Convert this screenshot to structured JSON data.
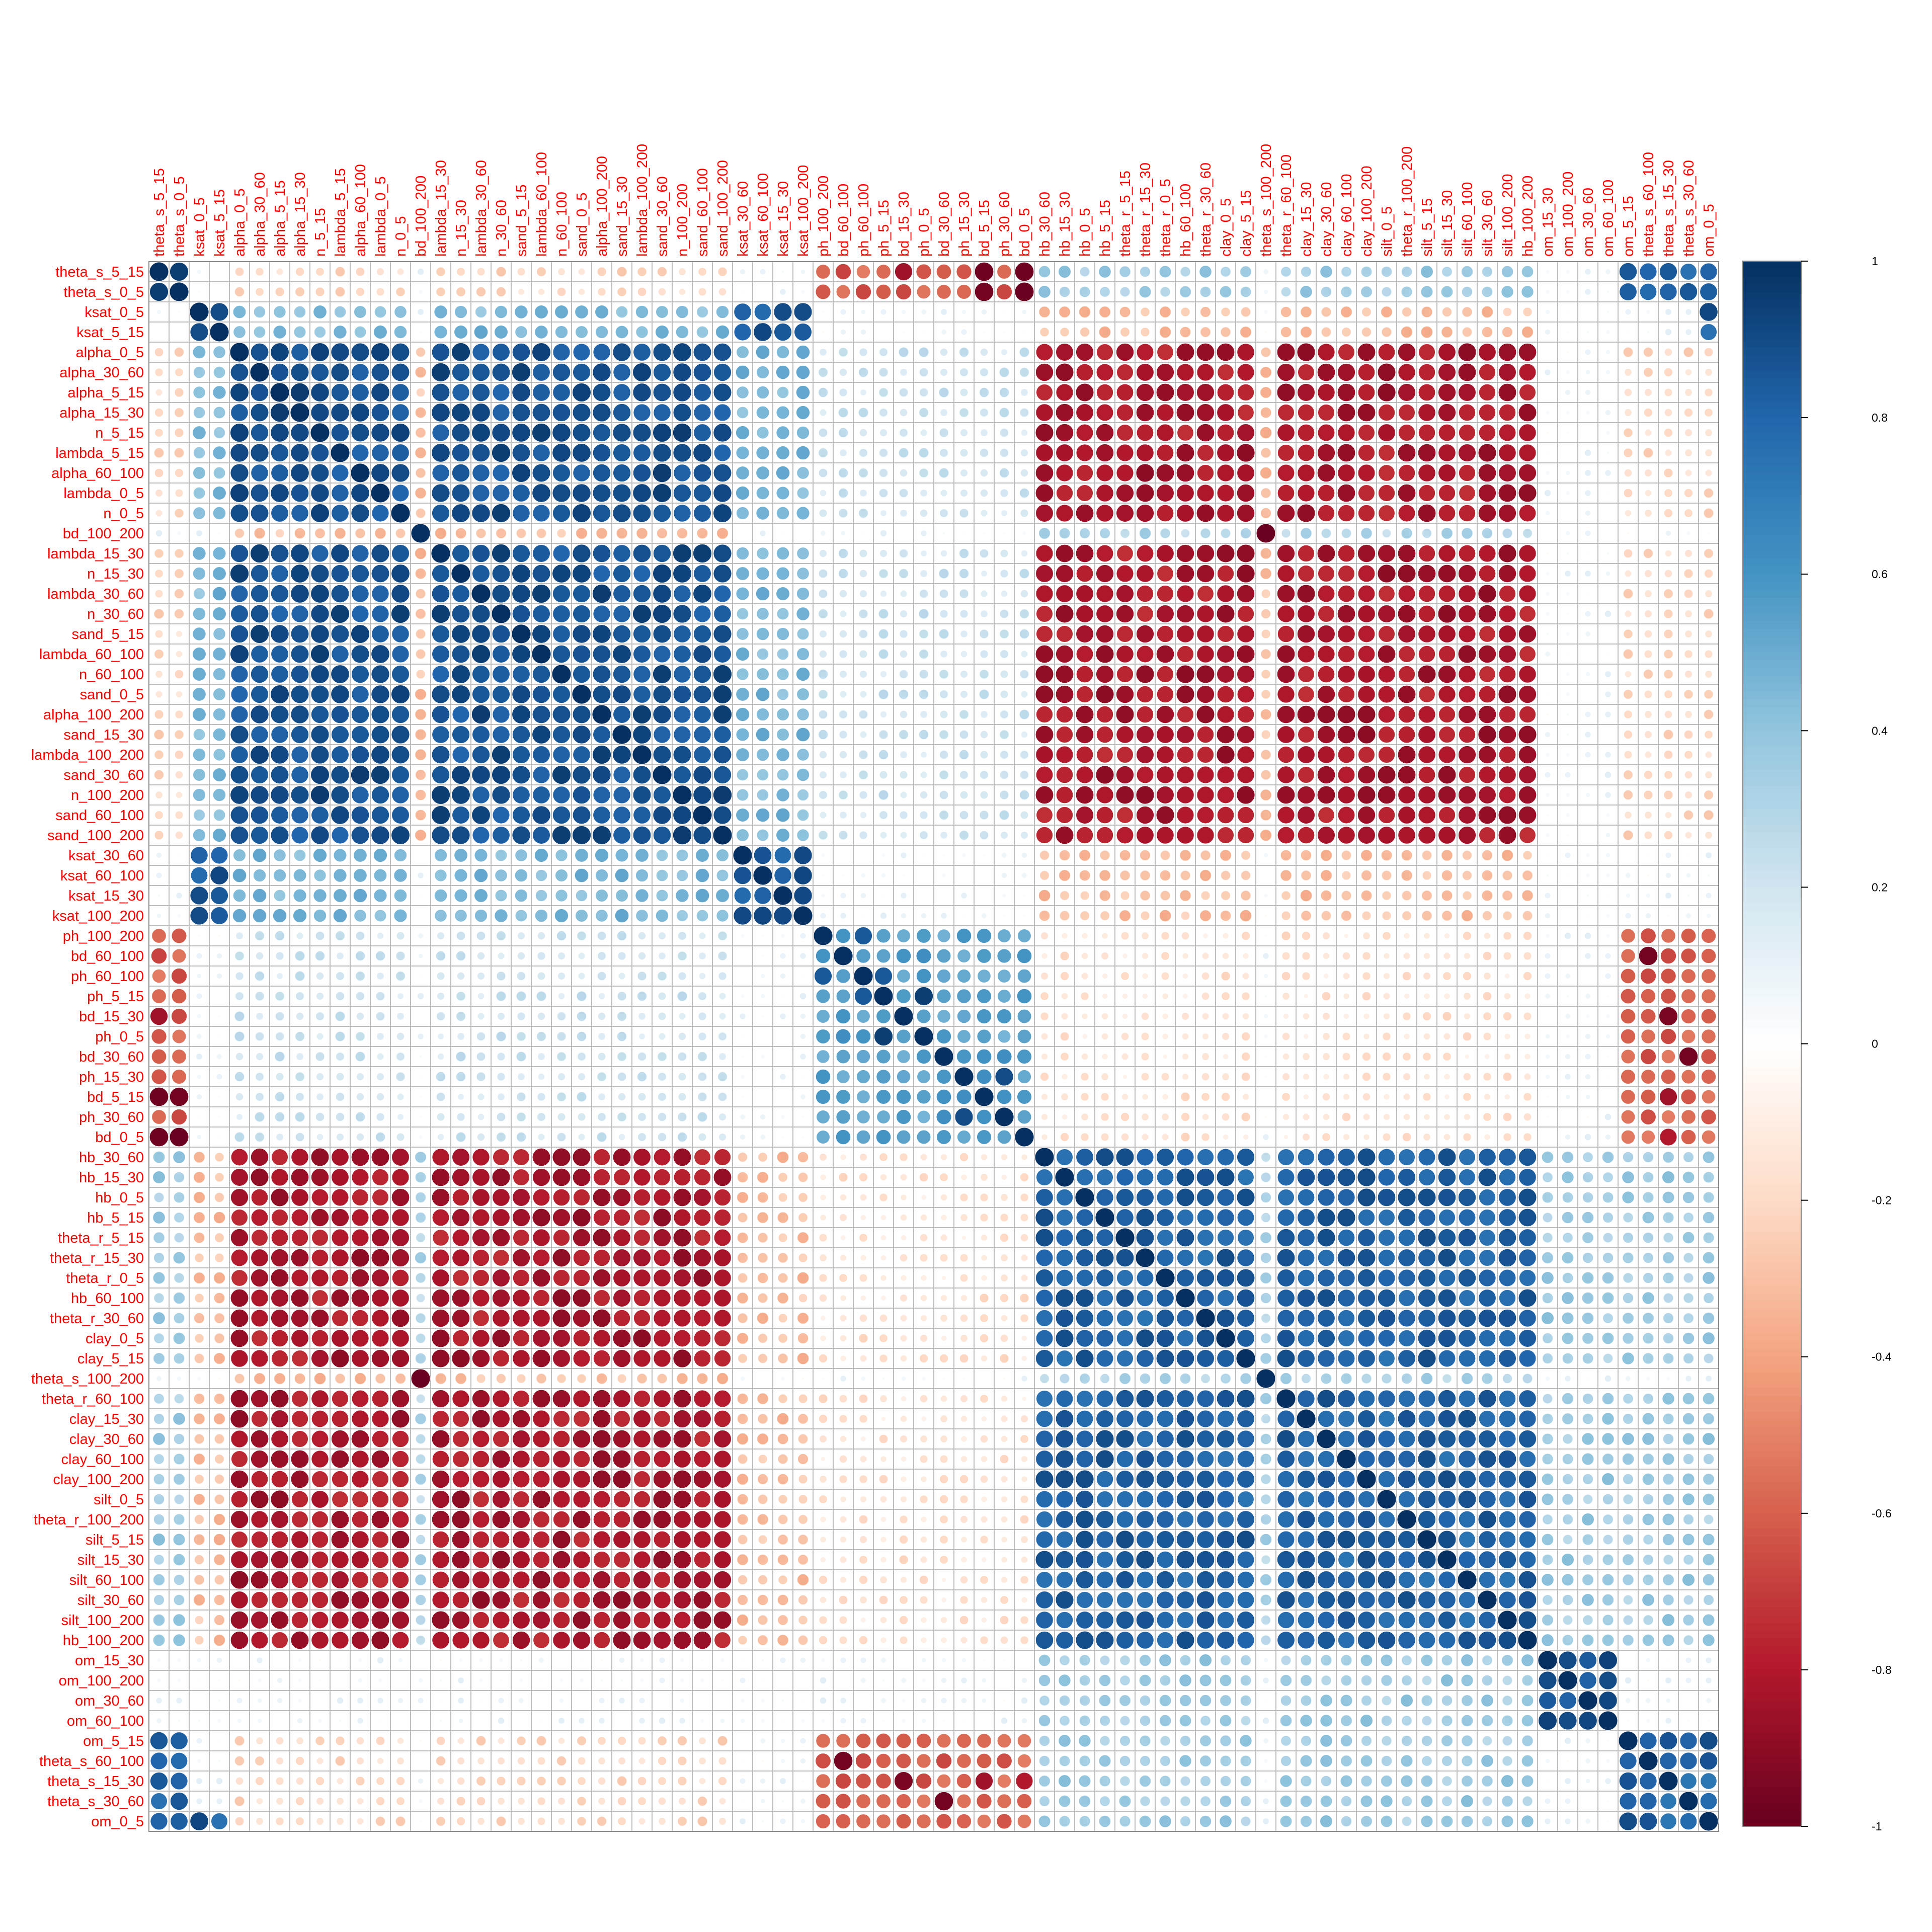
{
  "chart_data": {
    "type": "heatmap",
    "style": "correlation matrix, circle glyphs (size and color encode correlation)",
    "variables": [
      "theta_s_5_15",
      "theta_s_0_5",
      "ksat_0_5",
      "ksat_5_15",
      "alpha_0_5",
      "alpha_30_60",
      "alpha_5_15",
      "alpha_15_30",
      "n_5_15",
      "lambda_5_15",
      "alpha_60_100",
      "lambda_0_5",
      "n_0_5",
      "bd_100_200",
      "lambda_15_30",
      "n_15_30",
      "lambda_30_60",
      "n_30_60",
      "sand_5_15",
      "lambda_60_100",
      "n_60_100",
      "sand_0_5",
      "alpha_100_200",
      "sand_15_30",
      "lambda_100_200",
      "sand_30_60",
      "n_100_200",
      "sand_60_100",
      "sand_100_200",
      "ksat_30_60",
      "ksat_60_100",
      "ksat_15_30",
      "ksat_100_200",
      "ph_100_200",
      "bd_60_100",
      "ph_60_100",
      "ph_5_15",
      "bd_15_30",
      "ph_0_5",
      "bd_30_60",
      "ph_15_30",
      "bd_5_15",
      "ph_30_60",
      "bd_0_5",
      "hb_30_60",
      "hb_15_30",
      "hb_0_5",
      "hb_5_15",
      "theta_r_5_15",
      "theta_r_15_30",
      "theta_r_0_5",
      "hb_60_100",
      "theta_r_30_60",
      "clay_0_5",
      "clay_5_15",
      "theta_s_100_200",
      "theta_r_60_100",
      "clay_15_30",
      "clay_30_60",
      "clay_60_100",
      "clay_100_200",
      "silt_0_5",
      "theta_r_100_200",
      "silt_5_15",
      "silt_15_30",
      "silt_60_100",
      "silt_30_60",
      "silt_100_200",
      "hb_100_200",
      "om_15_30",
      "om_100_200",
      "om_30_60",
      "om_60_100",
      "om_5_15",
      "theta_s_60_100",
      "theta_s_15_30",
      "theta_s_30_60",
      "om_0_5"
    ],
    "groups": {
      "A": [
        "alpha_0_5",
        "alpha_30_60",
        "alpha_5_15",
        "alpha_15_30",
        "n_5_15",
        "lambda_5_15",
        "alpha_60_100",
        "lambda_0_5",
        "n_0_5",
        "lambda_15_30",
        "n_15_30",
        "lambda_30_60",
        "n_30_60",
        "sand_5_15",
        "lambda_60_100",
        "n_60_100",
        "sand_0_5",
        "alpha_100_200",
        "sand_15_30",
        "lambda_100_200",
        "sand_30_60",
        "n_100_200",
        "sand_60_100",
        "sand_100_200"
      ],
      "K": [
        "ksat_0_5",
        "ksat_5_15",
        "ksat_30_60",
        "ksat_60_100",
        "ksat_15_30",
        "ksat_100_200"
      ],
      "P": [
        "ph_100_200",
        "bd_60_100",
        "ph_60_100",
        "ph_5_15",
        "bd_15_30",
        "ph_0_5",
        "bd_30_60",
        "ph_15_30",
        "bd_5_15",
        "ph_30_60",
        "bd_0_5"
      ],
      "C": [
        "hb_30_60",
        "hb_15_30",
        "hb_0_5",
        "hb_5_15",
        "theta_r_5_15",
        "theta_r_15_30",
        "theta_r_0_5",
        "hb_60_100",
        "theta_r_30_60",
        "clay_0_5",
        "clay_5_15",
        "theta_r_60_100",
        "clay_15_30",
        "clay_30_60",
        "clay_60_100",
        "clay_100_200",
        "silt_0_5",
        "theta_r_100_200",
        "silt_5_15",
        "silt_15_30",
        "silt_60_100",
        "silt_30_60",
        "silt_100_200",
        "hb_100_200"
      ],
      "O": [
        "om_15_30",
        "om_100_200",
        "om_30_60",
        "om_60_100"
      ],
      "S": [
        "theta_s_5_15",
        "theta_s_0_5",
        "om_5_15",
        "theta_s_60_100",
        "theta_s_15_30",
        "theta_s_30_60",
        "om_0_5"
      ],
      "X": [
        "bd_100_200",
        "theta_s_100_200"
      ]
    },
    "approx_block_correlations": {
      "A-A": 0.88,
      "C-C": 0.82,
      "A-C": -0.82,
      "A-K": 0.45,
      "K-K": 0.85,
      "K-C": -0.3,
      "P-P": 0.55,
      "A-P": 0.2,
      "C-P": -0.15,
      "O-O": 0.9,
      "S-S": 0.8,
      "P-S": -0.6,
      "C-S": 0.35,
      "A-S": -0.2,
      "C-O": 0.35,
      "X-X": 0.99,
      "A-X": -0.3,
      "C-X": 0.3
    },
    "notable_pairs": [
      {
        "a": "theta_s_5_15",
        "b": "theta_s_0_5",
        "r": 0.95
      },
      {
        "a": "theta_s_5_15",
        "b": "bd_15_30",
        "r": -0.85
      },
      {
        "a": "theta_s_5_15",
        "b": "bd_5_15",
        "r": -0.98
      },
      {
        "a": "theta_s_5_15",
        "b": "bd_0_5",
        "r": -0.98
      },
      {
        "a": "theta_s_0_5",
        "b": "bd_5_15",
        "r": -0.97
      },
      {
        "a": "theta_s_0_5",
        "b": "bd_0_5",
        "r": -0.99
      },
      {
        "a": "theta_s_5_15",
        "b": "theta_s_15_30",
        "r": 0.85
      },
      {
        "a": "theta_s_5_15",
        "b": "theta_s_30_60",
        "r": 0.75
      },
      {
        "a": "ksat_0_5",
        "b": "ksat_5_15",
        "r": 0.9
      },
      {
        "a": "ksat_0_5",
        "b": "om_0_5",
        "r": 0.92
      },
      {
        "a": "ksat_5_15",
        "b": "om_0_5",
        "r": 0.75
      },
      {
        "a": "ksat_5_15",
        "b": "ksat_30_60",
        "r": 0.8
      },
      {
        "a": "ksat_5_15",
        "b": "ksat_15_30",
        "r": 0.85
      },
      {
        "a": "bd_100_200",
        "b": "theta_s_100_200",
        "r": -0.99
      },
      {
        "a": "bd_60_100",
        "b": "theta_s_60_100",
        "r": -0.97
      },
      {
        "a": "bd_15_30",
        "b": "theta_s_15_30",
        "r": -0.95
      },
      {
        "a": "bd_30_60",
        "b": "theta_s_30_60",
        "r": -0.97
      },
      {
        "a": "bd_5_15",
        "b": "theta_s_15_30",
        "r": -0.85
      },
      {
        "a": "bd_0_5",
        "b": "theta_s_15_30",
        "r": -0.8
      },
      {
        "a": "ph_100_200",
        "b": "ph_60_100",
        "r": 0.85
      },
      {
        "a": "ph_60_100",
        "b": "ph_5_15",
        "r": 0.85
      },
      {
        "a": "ph_5_15",
        "b": "ph_0_5",
        "r": 0.95
      },
      {
        "a": "ph_15_30",
        "b": "ph_30_60",
        "r": 0.9
      },
      {
        "a": "om_15_30",
        "b": "om_100_200",
        "r": 0.9
      },
      {
        "a": "om_5_15",
        "b": "om_0_5",
        "r": 0.9
      }
    ],
    "colorbar": {
      "min": -1,
      "max": 1,
      "ticks": [
        "1",
        "0.8",
        "0.6",
        "0.4",
        "0.2",
        "0",
        "-0.2",
        "-0.4",
        "-0.6",
        "-0.8",
        "-1"
      ]
    },
    "colors": {
      "label_text": "#ff0000",
      "grid": "#bcbcbc",
      "frame": "#888888",
      "tick_text": "#000000",
      "palette": [
        "#67001f",
        "#b2182b",
        "#d6604d",
        "#f4a582",
        "#fddbc7",
        "#ffffff",
        "#d1e5f0",
        "#92c5de",
        "#4393c3",
        "#2166ac",
        "#053061"
      ]
    }
  }
}
